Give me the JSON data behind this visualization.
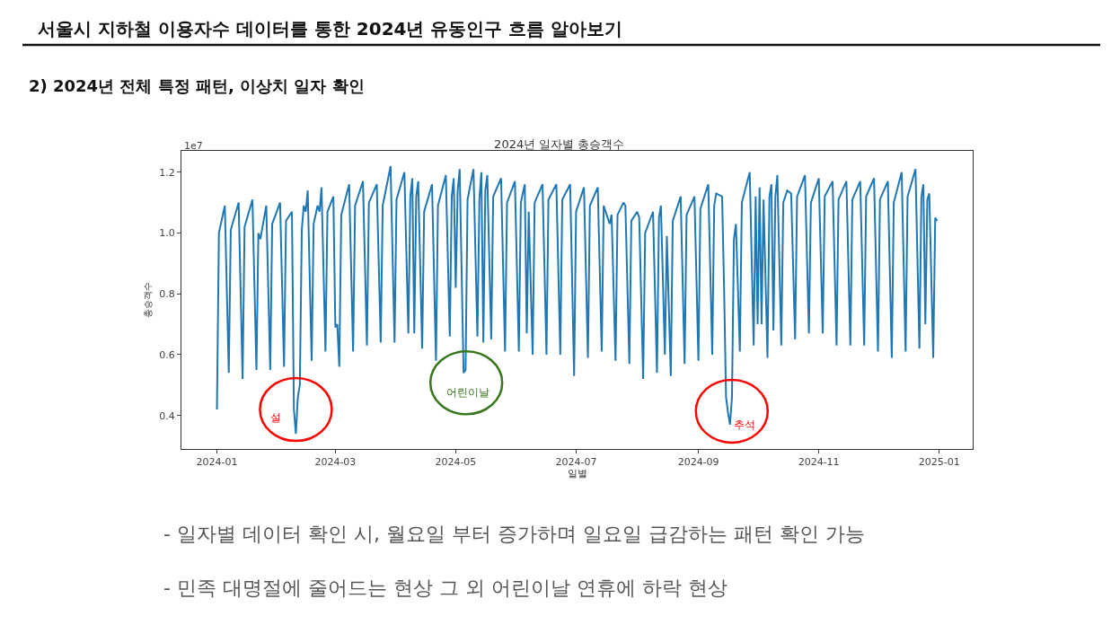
{
  "chart_data": {
    "type": "line",
    "title": "2024년 일자별 총승객수",
    "xlabel": "일별",
    "ylabel": "총승객수",
    "annotations": [
      "서울시 지하철 이용자수 데이터를 통한 2024년 유동인구 흐름 알아보기",
      "2) 2024년 전체 특정 패턴, 이상치 일자 확인",
      "1e7",
      {
        "text": "설",
        "x": "2024-02-10",
        "y": 0.34
      },
      {
        "text": "어린이날",
        "x": "2024-05-05",
        "y": 0.54
      },
      {
        "text": "추석",
        "x": "2024-09-17",
        "y": 0.37
      },
      "- 일자별 데이터 확인 시, 월요일 부터 증가하며 일요일 급감하는 패턴 확인 가능",
      "- 민족 대명절에 줄어드는 현상 그 외 어린이날 연휴에 하락 현상"
    ],
    "x": [
      "2024-01-01",
      "2024-01-02",
      "2024-01-05",
      "2024-01-07",
      "2024-01-08",
      "2024-01-12",
      "2024-01-14",
      "2024-01-15",
      "2024-01-19",
      "2024-01-21",
      "2024-01-22",
      "2024-01-23",
      "2024-01-26",
      "2024-01-28",
      "2024-01-29",
      "2024-02-02",
      "2024-02-04",
      "2024-02-05",
      "2024-02-08",
      "2024-02-09",
      "2024-02-10",
      "2024-02-11",
      "2024-02-12",
      "2024-02-13",
      "2024-02-14",
      "2024-02-15",
      "2024-02-16",
      "2024-02-18",
      "2024-02-19",
      "2024-02-21",
      "2024-02-22",
      "2024-02-23",
      "2024-02-25",
      "2024-02-26",
      "2024-02-29",
      "2024-03-01",
      "2024-03-02",
      "2024-03-03",
      "2024-03-04",
      "2024-03-08",
      "2024-03-10",
      "2024-03-11",
      "2024-03-15",
      "2024-03-17",
      "2024-03-18",
      "2024-03-22",
      "2024-03-24",
      "2024-03-25",
      "2024-03-29",
      "2024-03-31",
      "2024-04-01",
      "2024-04-05",
      "2024-04-07",
      "2024-04-08",
      "2024-04-09",
      "2024-04-10",
      "2024-04-11",
      "2024-04-12",
      "2024-04-14",
      "2024-04-15",
      "2024-04-19",
      "2024-04-21",
      "2024-04-22",
      "2024-04-26",
      "2024-04-28",
      "2024-04-29",
      "2024-04-30",
      "2024-05-01",
      "2024-05-02",
      "2024-05-03",
      "2024-05-05",
      "2024-05-06",
      "2024-05-07",
      "2024-05-10",
      "2024-05-12",
      "2024-05-13",
      "2024-05-14",
      "2024-05-15",
      "2024-05-16",
      "2024-05-17",
      "2024-05-19",
      "2024-05-20",
      "2024-05-24",
      "2024-05-26",
      "2024-05-27",
      "2024-05-31",
      "2024-06-02",
      "2024-06-03",
      "2024-06-05",
      "2024-06-06",
      "2024-06-07",
      "2024-06-09",
      "2024-06-10",
      "2024-06-14",
      "2024-06-16",
      "2024-06-17",
      "2024-06-21",
      "2024-06-23",
      "2024-06-24",
      "2024-06-28",
      "2024-06-30",
      "2024-07-01",
      "2024-07-05",
      "2024-07-07",
      "2024-07-08",
      "2024-07-12",
      "2024-07-14",
      "2024-07-15",
      "2024-07-18",
      "2024-07-19",
      "2024-07-21",
      "2024-07-22",
      "2024-07-25",
      "2024-07-26",
      "2024-07-28",
      "2024-07-29",
      "2024-08-01",
      "2024-08-02",
      "2024-08-04",
      "2024-08-05",
      "2024-08-09",
      "2024-08-11",
      "2024-08-12",
      "2024-08-13",
      "2024-08-15",
      "2024-08-16",
      "2024-08-18",
      "2024-08-19",
      "2024-08-23",
      "2024-08-25",
      "2024-08-26",
      "2024-08-30",
      "2024-09-01",
      "2024-09-02",
      "2024-09-06",
      "2024-09-08",
      "2024-09-09",
      "2024-09-10",
      "2024-09-13",
      "2024-09-14",
      "2024-09-15",
      "2024-09-16",
      "2024-09-17",
      "2024-09-18",
      "2024-09-19",
      "2024-09-20",
      "2024-09-22",
      "2024-09-23",
      "2024-09-27",
      "2024-09-29",
      "2024-09-30",
      "2024-10-01",
      "2024-10-02",
      "2024-10-03",
      "2024-10-04",
      "2024-10-06",
      "2024-10-07",
      "2024-10-08",
      "2024-10-09",
      "2024-10-10",
      "2024-10-11",
      "2024-10-13",
      "2024-10-14",
      "2024-10-16",
      "2024-10-18",
      "2024-10-20",
      "2024-10-21",
      "2024-10-25",
      "2024-10-27",
      "2024-10-28",
      "2024-11-01",
      "2024-11-03",
      "2024-11-04",
      "2024-11-08",
      "2024-11-10",
      "2024-11-11",
      "2024-11-15",
      "2024-11-17",
      "2024-11-18",
      "2024-11-22",
      "2024-11-24",
      "2024-11-25",
      "2024-11-29",
      "2024-12-01",
      "2024-12-02",
      "2024-12-06",
      "2024-12-08",
      "2024-12-09",
      "2024-12-13",
      "2024-12-15",
      "2024-12-16",
      "2024-12-20",
      "2024-12-22",
      "2024-12-23",
      "2024-12-24",
      "2024-12-25",
      "2024-12-26",
      "2024-12-27",
      "2024-12-29",
      "2024-12-30",
      "2024-12-31"
    ],
    "series": [
      {
        "color": "#1f77b4",
        "values": [
          0.42,
          1.0,
          1.09,
          0.54,
          1.01,
          1.1,
          0.52,
          1.02,
          1.11,
          0.55,
          1.0,
          0.98,
          1.09,
          0.55,
          1.03,
          1.1,
          0.56,
          1.04,
          1.07,
          0.42,
          0.34,
          0.46,
          0.5,
          1.01,
          1.09,
          1.07,
          1.14,
          0.58,
          1.03,
          1.09,
          1.07,
          1.15,
          0.61,
          1.07,
          1.12,
          0.69,
          0.7,
          0.56,
          1.06,
          1.16,
          0.61,
          1.09,
          1.17,
          0.63,
          1.1,
          1.16,
          0.64,
          1.09,
          1.22,
          0.64,
          1.11,
          1.2,
          0.67,
          1.12,
          1.18,
          0.67,
          1.12,
          1.17,
          0.62,
          1.07,
          1.16,
          0.58,
          1.09,
          1.19,
          0.66,
          1.12,
          1.18,
          0.82,
          1.14,
          1.21,
          0.54,
          0.55,
          1.11,
          1.21,
          0.66,
          1.11,
          1.2,
          0.64,
          1.14,
          1.19,
          0.65,
          1.12,
          1.18,
          0.61,
          1.1,
          1.17,
          0.61,
          1.1,
          1.16,
          0.67,
          1.07,
          0.6,
          1.1,
          1.16,
          0.6,
          1.11,
          1.16,
          0.6,
          1.11,
          1.16,
          0.53,
          1.07,
          1.15,
          0.59,
          1.09,
          1.15,
          0.61,
          1.09,
          1.03,
          1.06,
          0.58,
          1.06,
          1.1,
          1.09,
          0.57,
          1.04,
          1.07,
          1.05,
          0.52,
          1.0,
          1.07,
          0.54,
          1.05,
          1.09,
          0.6,
          0.99,
          0.53,
          1.04,
          1.12,
          0.57,
          1.06,
          1.12,
          0.58,
          1.08,
          1.16,
          0.6,
          1.09,
          1.13,
          1.12,
          0.82,
          0.46,
          0.41,
          0.37,
          0.46,
          0.98,
          1.03,
          0.61,
          1.1,
          1.2,
          0.63,
          1.12,
          0.7,
          1.15,
          0.7,
          1.11,
          0.59,
          1.12,
          1.16,
          0.68,
          1.12,
          1.19,
          0.63,
          1.1,
          1.14,
          1.13,
          0.65,
          1.12,
          1.19,
          0.67,
          1.1,
          1.18,
          0.67,
          1.12,
          1.17,
          0.63,
          1.11,
          1.17,
          0.63,
          1.11,
          1.17,
          0.63,
          1.12,
          1.18,
          0.61,
          1.11,
          1.17,
          0.59,
          1.1,
          1.2,
          0.61,
          1.12,
          1.21,
          0.62,
          1.12,
          1.16,
          0.7,
          1.11,
          1.13,
          0.59,
          1.05,
          1.04
        ]
      }
    ],
    "xlim": [
      "2023-12-14",
      "2025-01-18"
    ],
    "ylim": [
      0.29,
      1.27
    ],
    "xticks": [
      "2024-01",
      "2024-03",
      "2024-05",
      "2024-07",
      "2024-09",
      "2024-11",
      "2025-01"
    ],
    "yticks": [
      0.4,
      0.6,
      0.8,
      {
        "value": 1.0,
        "label": "1.0"
      },
      1.2
    ],
    "marker": "none",
    "line_style": "solid"
  }
}
